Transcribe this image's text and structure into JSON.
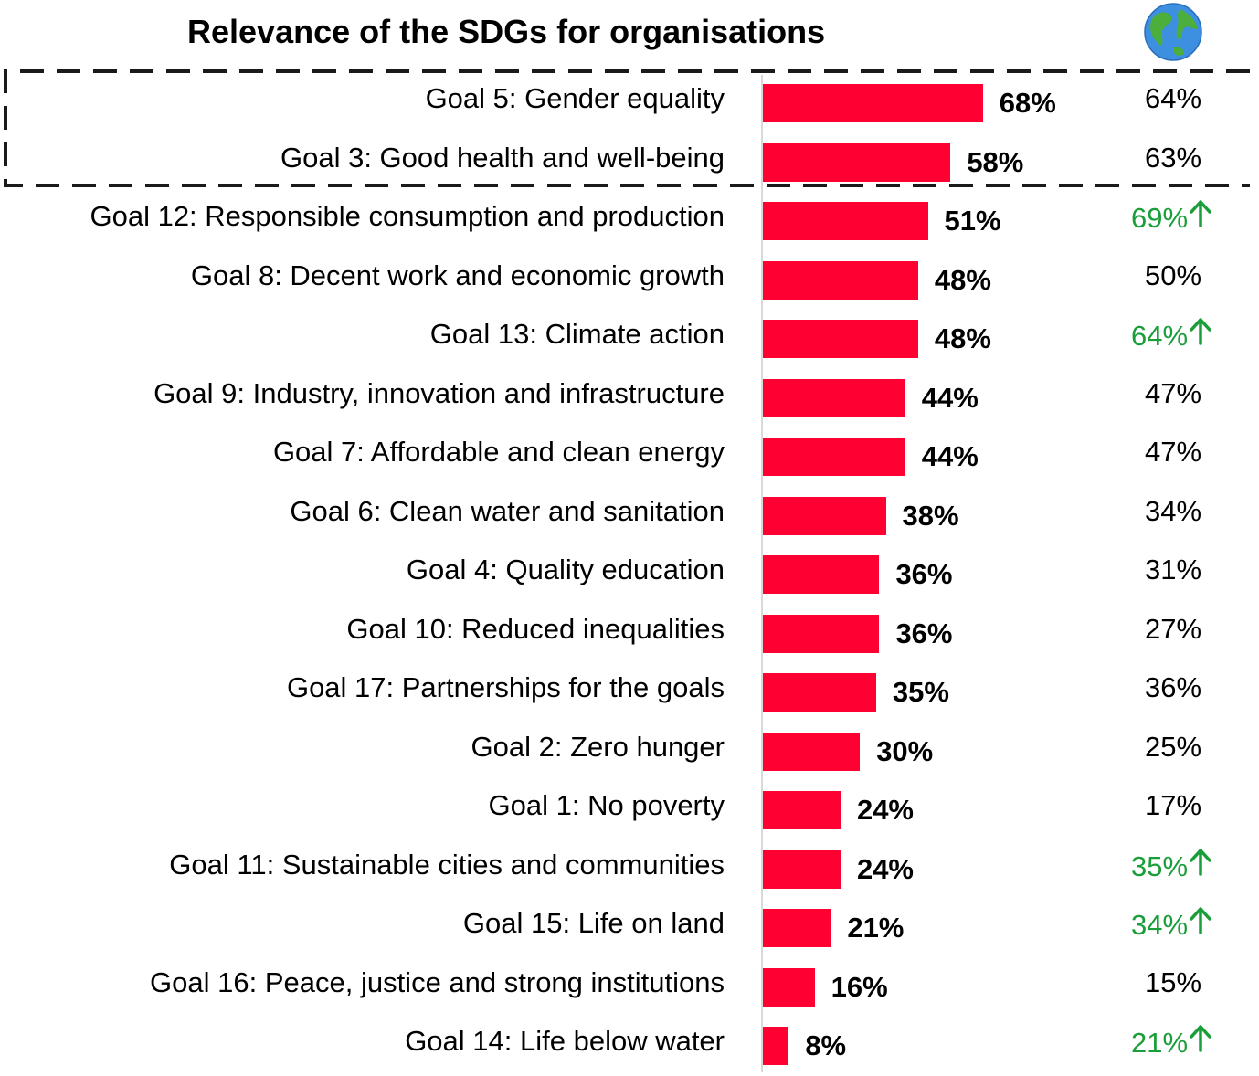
{
  "chart_data": {
    "type": "bar",
    "orientation": "horizontal",
    "title": "Relevance of the SDGs for organisations",
    "xlim": [
      0,
      100
    ],
    "grid": false,
    "bar_color": "#ff0032",
    "comparison_color": "#000000",
    "increase_color": "#1a9e3a",
    "highlighted_categories": [
      "Goal 5: Gender equality",
      "Goal 3: Good health and well-being"
    ],
    "categories": [
      "Goal 5: Gender equality",
      "Goal 3: Good health and well-being",
      "Goal 12: Responsible consumption and production",
      "Goal 8: Decent work and economic growth",
      "Goal 13: Climate action",
      "Goal 9: Industry, innovation and infrastructure",
      "Goal 7: Affordable and clean energy",
      "Goal 6: Clean water and sanitation",
      "Goal 4: Quality education",
      "Goal 10: Reduced inequalities",
      "Goal 17: Partnerships for the goals",
      "Goal 2: Zero hunger",
      "Goal 1: No poverty",
      "Goal 11: Sustainable cities and communities",
      "Goal 15: Life on land",
      "Goal 16: Peace, justice and strong institutions",
      "Goal 14: Life below water"
    ],
    "values": [
      68,
      58,
      51,
      48,
      48,
      44,
      44,
      38,
      36,
      36,
      35,
      30,
      24,
      24,
      21,
      16,
      8
    ],
    "value_labels": [
      "68%",
      "58%",
      "51%",
      "48%",
      "48%",
      "44%",
      "44%",
      "38%",
      "36%",
      "36%",
      "35%",
      "30%",
      "24%",
      "24%",
      "21%",
      "16%",
      "8%"
    ],
    "comparison": [
      {
        "label": "64%",
        "increase": false
      },
      {
        "label": "63%",
        "increase": false
      },
      {
        "label": "69%",
        "increase": true
      },
      {
        "label": "50%",
        "increase": false
      },
      {
        "label": "64%",
        "increase": true
      },
      {
        "label": "47%",
        "increase": false
      },
      {
        "label": "47%",
        "increase": false
      },
      {
        "label": "34%",
        "increase": false
      },
      {
        "label": "31%",
        "increase": false
      },
      {
        "label": "27%",
        "increase": false
      },
      {
        "label": "36%",
        "increase": false
      },
      {
        "label": "25%",
        "increase": false
      },
      {
        "label": "17%",
        "increase": false
      },
      {
        "label": "35%",
        "increase": true
      },
      {
        "label": "34%",
        "increase": true
      },
      {
        "label": "15%",
        "increase": false
      },
      {
        "label": "21%",
        "increase": true
      }
    ],
    "comparison_icon": "globe-icon",
    "increase_icon": "arrow-up-icon"
  }
}
